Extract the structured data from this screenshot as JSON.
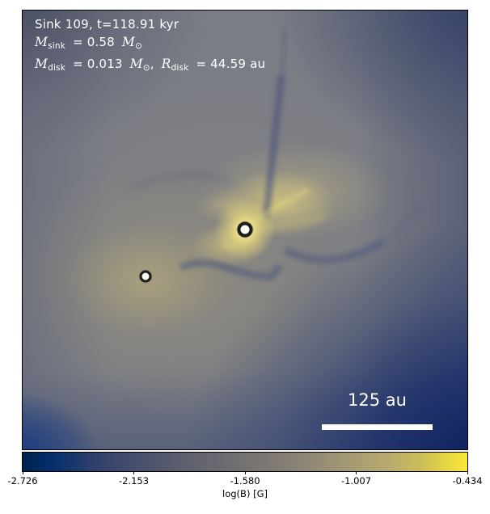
{
  "header": {
    "title": "Sink 109, t=118.91 kyr",
    "msink": {
      "sym": "M",
      "sub": "sink",
      "val": "= 0.58",
      "unit_sym": "M",
      "unit_sub": "⊙"
    },
    "mdisk": {
      "sym": "M",
      "sub": "disk",
      "val": "= 0.013",
      "unit_sym": "M",
      "unit_sub": "⊙",
      "comma": ","
    },
    "rdisk": {
      "sym": "R",
      "sub": "disk",
      "val": "= 44.59 au"
    }
  },
  "scalebar": {
    "label": "125 au"
  },
  "colorbar": {
    "label": "log(B) [G]",
    "ticks": [
      "-2.726",
      "-2.153",
      "-1.580",
      "-1.007",
      "-0.434"
    ],
    "colormap": "cividis"
  },
  "chart_data": {
    "type": "heatmap",
    "title": "Sink 109, t=118.91 kyr",
    "annotations": [
      "M_sink = 0.58 M_sun",
      "M_disk = 0.013 M_sun",
      "R_disk = 44.59 au"
    ],
    "quantity": "log(B) [G]",
    "colorbar": {
      "label": "log(B) [G]",
      "min": -2.726,
      "max": -0.434,
      "ticks": [
        -2.726,
        -2.153,
        -1.58,
        -1.007,
        -0.434
      ],
      "colormap": "cividis"
    },
    "scalebar": {
      "length_au": 125
    },
    "sinks": [
      {
        "id": "primary",
        "x_frac": 0.5,
        "y_frac": 0.499
      },
      {
        "id": "secondary",
        "x_frac": 0.276,
        "y_frac": 0.606
      }
    ],
    "field_description": "Map of log magnetic field strength: bright yellow peak with bipolar yellow lobes at the primary sink, diffuse warm glow at the secondary sink, dark blue filamentary arcs around the center, deep navy corners (lowest B), gray mid-level background."
  }
}
